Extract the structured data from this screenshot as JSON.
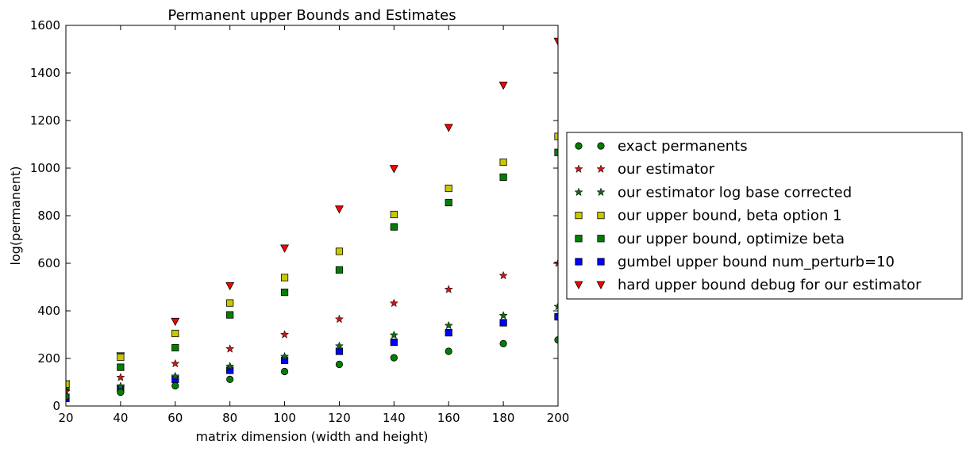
{
  "chart_data": {
    "type": "scatter",
    "title": "Permanent upper Bounds and Estimates",
    "xlabel": "matrix dimension (width and height)",
    "ylabel": "log(permanent)",
    "xlim": [
      20,
      200
    ],
    "ylim": [
      0,
      1600
    ],
    "x_ticks": [
      "20",
      "40",
      "60",
      "80",
      "100",
      "120",
      "140",
      "160",
      "180",
      "200"
    ],
    "y_ticks": [
      "0",
      "200",
      "400",
      "600",
      "800",
      "1000",
      "1200",
      "1400",
      "1600"
    ],
    "grid": false,
    "legend_position": "outside-right",
    "x": [
      20,
      40,
      60,
      80,
      100,
      120,
      140,
      160,
      180,
      200
    ],
    "series": [
      {
        "name": "exact permanents",
        "marker": "circle",
        "color": "#008000",
        "values": [
          40,
          58,
          85,
          112,
          145,
          175,
          203,
          230,
          262,
          278
        ]
      },
      {
        "name": "our estimator",
        "marker": "star",
        "color": "#bf1b1b",
        "values": [
          60,
          120,
          178,
          240,
          300,
          365,
          432,
          490,
          548,
          600
        ]
      },
      {
        "name": "our estimator log base corrected",
        "marker": "star",
        "color": "#0c6e0c",
        "values": [
          45,
          83,
          125,
          167,
          208,
          252,
          298,
          338,
          380,
          418
        ]
      },
      {
        "name": "our upper bound, beta option 1",
        "marker": "square",
        "color": "#c8c800",
        "values": [
          92,
          205,
          305,
          433,
          540,
          650,
          805,
          915,
          1025,
          1133
        ]
      },
      {
        "name": "our upper bound, optimize beta",
        "marker": "square",
        "color": "#008000",
        "values": [
          82,
          163,
          245,
          383,
          478,
          572,
          753,
          855,
          962,
          1066
        ]
      },
      {
        "name": "gumbel upper bound num_perturb=10",
        "marker": "square",
        "color": "#0000ff",
        "values": [
          32,
          75,
          112,
          150,
          192,
          230,
          268,
          308,
          350,
          375
        ]
      },
      {
        "name": "hard upper bound debug for our estimator",
        "marker": "triangle-down",
        "color": "#ff0000",
        "values": [
          92,
          210,
          355,
          505,
          663,
          827,
          997,
          1170,
          1348,
          1532
        ]
      }
    ]
  }
}
